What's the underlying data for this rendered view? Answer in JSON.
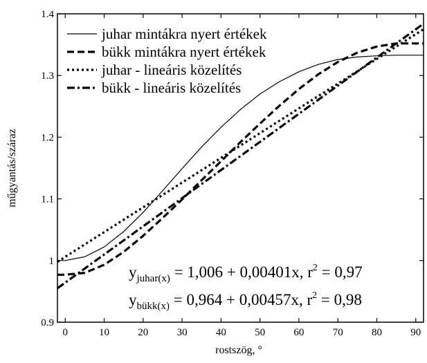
{
  "chart_data": {
    "type": "line",
    "title": "",
    "xlabel": "rostszög, °",
    "ylabel": "műgyantás/száraz",
    "xlim": [
      -2,
      92
    ],
    "ylim": [
      0.9,
      1.4
    ],
    "x_ticks": [
      0,
      10,
      20,
      30,
      40,
      50,
      60,
      70,
      80,
      90
    ],
    "y_ticks": [
      0.9,
      1,
      1.1,
      1.2,
      1.3,
      1.4
    ],
    "x_tick_labels": [
      "0",
      "10",
      "20",
      "30",
      "40",
      "50",
      "60",
      "70",
      "80",
      "90"
    ],
    "y_tick_labels": [
      "0.9",
      "1",
      "1.1",
      "1.2",
      "1.3",
      "1.4"
    ],
    "legend_position": "top-left",
    "grid": false,
    "series": [
      {
        "name": "juhar mintákra nyert értékek",
        "style": "solid",
        "x": [
          -2,
          0,
          5,
          10,
          15,
          20,
          25,
          30,
          35,
          40,
          45,
          50,
          55,
          60,
          65,
          70,
          75,
          80,
          85,
          92
        ],
        "y": [
          1.0,
          1.0,
          1.006,
          1.022,
          1.047,
          1.078,
          1.113,
          1.149,
          1.184,
          1.216,
          1.245,
          1.27,
          1.29,
          1.306,
          1.318,
          1.326,
          1.33,
          1.332,
          1.333,
          1.333
        ]
      },
      {
        "name": "bükk mintákra nyert értékek",
        "style": "dashed",
        "x": [
          -2,
          0,
          5,
          10,
          15,
          20,
          25,
          30,
          35,
          40,
          45,
          50,
          55,
          60,
          65,
          70,
          75,
          80,
          85,
          92
        ],
        "y": [
          0.977,
          0.977,
          0.98,
          0.993,
          1.014,
          1.04,
          1.069,
          1.099,
          1.13,
          1.161,
          1.192,
          1.222,
          1.251,
          1.278,
          1.302,
          1.322,
          1.337,
          1.347,
          1.352,
          1.352
        ]
      },
      {
        "name": "juhar - lineáris közelítés",
        "style": "dotted",
        "x": [
          -2,
          92
        ],
        "y": [
          0.998,
          1.375
        ]
      },
      {
        "name": "bükk - lineáris közelítés",
        "style": "dashdot",
        "x": [
          -2,
          92
        ],
        "y": [
          0.955,
          1.384
        ]
      }
    ],
    "equations": [
      {
        "y": "y",
        "sub": "juhar(x)",
        "rhs": " = 1,006 + 0,00401x,   r",
        "sup": "2",
        "tail": " = 0,97"
      },
      {
        "y": "y",
        "sub": "bükk(x)",
        "rhs": " = 0,964 + 0,00457x,   r",
        "sup": "2",
        "tail": " = 0,98"
      }
    ]
  }
}
